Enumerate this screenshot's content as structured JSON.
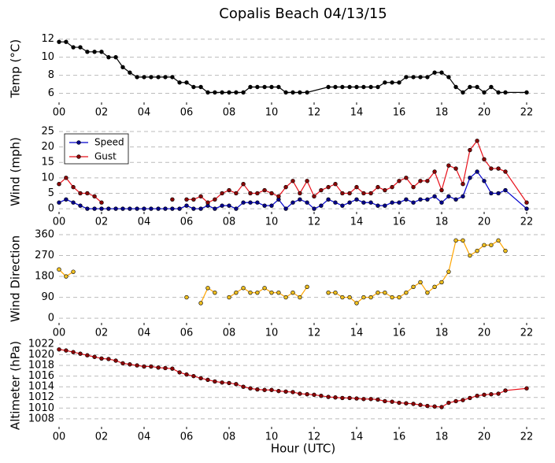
{
  "chart_data": [
    {
      "type": "line",
      "title": "Copalis Beach 04/13/15",
      "y_label": "Temp (°C)",
      "x": [
        0,
        0.33,
        0.67,
        1,
        1.33,
        1.67,
        2,
        2.33,
        2.67,
        3,
        3.33,
        3.67,
        4,
        4.33,
        4.67,
        5,
        5.33,
        5.67,
        6,
        6.33,
        6.67,
        7,
        7.33,
        7.67,
        8,
        8.33,
        8.67,
        9,
        9.33,
        9.67,
        10,
        10.33,
        10.67,
        11,
        11.33,
        11.67,
        12.67,
        13,
        13.33,
        13.67,
        14,
        14.33,
        14.67,
        15,
        15.33,
        15.67,
        16,
        16.33,
        16.67,
        17,
        17.33,
        17.67,
        18,
        18.33,
        18.67,
        19,
        19.33,
        19.67,
        20,
        20.33,
        20.67,
        21,
        22
      ],
      "series": [
        {
          "name": "Temp",
          "color": "#000000",
          "marker_color": "#000000",
          "values": [
            11.7,
            11.7,
            11.1,
            11.1,
            10.6,
            10.6,
            10.6,
            10,
            10,
            8.9,
            8.3,
            7.8,
            7.8,
            7.8,
            7.8,
            7.8,
            7.8,
            7.2,
            7.2,
            6.7,
            6.7,
            6.1,
            6.1,
            6.1,
            6.1,
            6.1,
            6.1,
            6.7,
            6.7,
            6.7,
            6.7,
            6.7,
            6.1,
            6.1,
            6.1,
            6.1,
            6.7,
            6.7,
            6.7,
            6.7,
            6.7,
            6.7,
            6.7,
            6.7,
            7.2,
            7.2,
            7.2,
            7.8,
            7.8,
            7.8,
            7.8,
            8.3,
            8.3,
            7.8,
            6.7,
            6.1,
            6.7,
            6.7,
            6.1,
            6.7,
            6.1,
            6.1,
            6.1
          ]
        }
      ],
      "xlim": [
        0,
        23
      ],
      "ylim": [
        5,
        12.5
      ],
      "yticks": [
        6,
        8,
        10,
        12
      ],
      "xticks": [
        {
          "value": 0,
          "label": "00"
        },
        {
          "value": 2,
          "label": "02"
        },
        {
          "value": 4,
          "label": "04"
        },
        {
          "value": 6,
          "label": "06"
        },
        {
          "value": 8,
          "label": "08"
        },
        {
          "value": 10,
          "label": "10"
        },
        {
          "value": 12,
          "label": "12"
        },
        {
          "value": 14,
          "label": "14"
        },
        {
          "value": 16,
          "label": "16"
        },
        {
          "value": 18,
          "label": "18"
        },
        {
          "value": 20,
          "label": "20"
        },
        {
          "value": 22,
          "label": "22"
        }
      ],
      "grid": true
    },
    {
      "type": "line",
      "y_label": "Wind (mph)",
      "legend": "upper left",
      "x": [
        0,
        0.33,
        0.67,
        1,
        1.33,
        1.67,
        2,
        2.33,
        2.67,
        3,
        3.33,
        3.67,
        4,
        4.33,
        4.67,
        5,
        5.33,
        5.67,
        6,
        6.33,
        6.67,
        7,
        7.33,
        7.67,
        8,
        8.33,
        8.67,
        9,
        9.33,
        9.67,
        10,
        10.33,
        10.67,
        11,
        11.33,
        11.67,
        12,
        12.33,
        12.67,
        13,
        13.33,
        13.67,
        14,
        14.33,
        14.67,
        15,
        15.33,
        15.67,
        16,
        16.33,
        16.67,
        17,
        17.33,
        17.67,
        18,
        18.33,
        18.67,
        19,
        19.33,
        19.67,
        20,
        20.33,
        20.67,
        21,
        22
      ],
      "series": [
        {
          "name": "Speed",
          "color": "#0000cc",
          "marker_color": "#00008b",
          "values": [
            2,
            3,
            2,
            1,
            0,
            0,
            0,
            0,
            0,
            0,
            0,
            0,
            0,
            0,
            0,
            0,
            0,
            0,
            1,
            0,
            0,
            1,
            0,
            1,
            1,
            0,
            2,
            2,
            2,
            1,
            1,
            3,
            0,
            2,
            3,
            2,
            0,
            1,
            3,
            2,
            1,
            2,
            3,
            2,
            2,
            1,
            1,
            2,
            2,
            3,
            2,
            3,
            3,
            4,
            2,
            4,
            3,
            4,
            10,
            12,
            9,
            5,
            5,
            6,
            0
          ]
        },
        {
          "name": "Gust",
          "color": "#e8101a",
          "marker_color": "#8b0000",
          "values": [
            8,
            10,
            7,
            5,
            5,
            4,
            2,
            null,
            null,
            null,
            null,
            null,
            null,
            null,
            null,
            null,
            3,
            null,
            3,
            3,
            4,
            2,
            3,
            5,
            6,
            5,
            8,
            5,
            5,
            6,
            5,
            4,
            7,
            9,
            5,
            9,
            4,
            6,
            7,
            8,
            5,
            5,
            7,
            5,
            5,
            7,
            6,
            7,
            9,
            10,
            7,
            9,
            9,
            12,
            6,
            14,
            13,
            8,
            19,
            22,
            16,
            13,
            13,
            12,
            2
          ]
        }
      ],
      "xlim": [
        0,
        23
      ],
      "ylim": [
        -1,
        25
      ],
      "yticks": [
        0,
        5,
        10,
        15,
        20,
        25
      ],
      "xticks": [
        {
          "value": 0,
          "label": "00"
        },
        {
          "value": 2,
          "label": "02"
        },
        {
          "value": 4,
          "label": "04"
        },
        {
          "value": 6,
          "label": "06"
        },
        {
          "value": 8,
          "label": "08"
        },
        {
          "value": 10,
          "label": "10"
        },
        {
          "value": 12,
          "label": "12"
        },
        {
          "value": 14,
          "label": "14"
        },
        {
          "value": 16,
          "label": "16"
        },
        {
          "value": 18,
          "label": "18"
        },
        {
          "value": 20,
          "label": "20"
        },
        {
          "value": 22,
          "label": "22"
        }
      ],
      "grid": true
    },
    {
      "type": "line",
      "y_label": "Wind Direction",
      "x": [
        0,
        0.33,
        0.67,
        1,
        1.33,
        1.67,
        2,
        2.33,
        2.67,
        3,
        3.33,
        3.67,
        4,
        4.33,
        4.67,
        5,
        5.33,
        5.67,
        6,
        6.33,
        6.67,
        7,
        7.33,
        7.67,
        8,
        8.33,
        8.67,
        9,
        9.33,
        9.67,
        10,
        10.33,
        10.67,
        11,
        11.33,
        11.67,
        12,
        12.33,
        12.67,
        13,
        13.33,
        13.67,
        14,
        14.33,
        14.67,
        15,
        15.33,
        15.67,
        16,
        16.33,
        16.67,
        17,
        17.33,
        17.67,
        18,
        18.33,
        18.67,
        19,
        19.33,
        19.67,
        20,
        20.33,
        20.67,
        21
      ],
      "series": [
        {
          "name": "Direction",
          "color": "#ffa500",
          "marker_color": "#f0c020",
          "values": [
            210,
            180,
            200,
            null,
            null,
            null,
            null,
            null,
            null,
            null,
            null,
            null,
            null,
            null,
            null,
            null,
            null,
            null,
            90,
            null,
            65,
            130,
            110,
            null,
            90,
            110,
            130,
            110,
            110,
            130,
            110,
            110,
            90,
            110,
            90,
            135,
            null,
            null,
            110,
            110,
            90,
            90,
            65,
            90,
            90,
            110,
            110,
            90,
            90,
            110,
            135,
            155,
            110,
            135,
            155,
            200,
            335,
            335,
            270,
            290,
            315,
            315,
            335,
            290
          ]
        }
      ],
      "xlim": [
        0,
        23
      ],
      "ylim": [
        -20,
        360
      ],
      "yticks": [
        0,
        90,
        180,
        270,
        360
      ],
      "xticks": [
        {
          "value": 0,
          "label": "00"
        },
        {
          "value": 2,
          "label": "02"
        },
        {
          "value": 4,
          "label": "04"
        },
        {
          "value": 6,
          "label": "06"
        },
        {
          "value": 8,
          "label": "08"
        },
        {
          "value": 10,
          "label": "10"
        },
        {
          "value": 12,
          "label": "12"
        },
        {
          "value": 14,
          "label": "14"
        },
        {
          "value": 16,
          "label": "16"
        },
        {
          "value": 18,
          "label": "18"
        },
        {
          "value": 20,
          "label": "20"
        },
        {
          "value": 22,
          "label": "22"
        }
      ],
      "grid": true
    },
    {
      "type": "line",
      "y_label": "Altimeter (hPa)",
      "x_label": "Hour (UTC)",
      "x": [
        0,
        0.33,
        0.67,
        1,
        1.33,
        1.67,
        2,
        2.33,
        2.67,
        3,
        3.33,
        3.67,
        4,
        4.33,
        4.67,
        5,
        5.33,
        5.67,
        6,
        6.33,
        6.67,
        7,
        7.33,
        7.67,
        8,
        8.33,
        8.67,
        9,
        9.33,
        9.67,
        10,
        10.33,
        10.67,
        11,
        11.33,
        11.67,
        12,
        12.33,
        12.67,
        13,
        13.33,
        13.67,
        14,
        14.33,
        14.67,
        15,
        15.33,
        15.67,
        16,
        16.33,
        16.67,
        17,
        17.33,
        17.67,
        18,
        18.33,
        18.67,
        19,
        19.33,
        19.67,
        20,
        20.33,
        20.67,
        21,
        22
      ],
      "series": [
        {
          "name": "Altimeter",
          "color": "#e8101a",
          "marker_color": "#8b0000",
          "values": [
            1021.0,
            1020.8,
            1020.5,
            1020.2,
            1019.9,
            1019.6,
            1019.3,
            1019.2,
            1018.9,
            1018.4,
            1018.2,
            1018.0,
            1017.8,
            1017.8,
            1017.6,
            1017.5,
            1017.4,
            1016.7,
            1016.3,
            1016.0,
            1015.6,
            1015.3,
            1015.0,
            1014.8,
            1014.7,
            1014.5,
            1014.0,
            1013.7,
            1013.5,
            1013.4,
            1013.4,
            1013.2,
            1013.1,
            1013.0,
            1012.7,
            1012.6,
            1012.5,
            1012.3,
            1012.1,
            1012.0,
            1011.9,
            1011.9,
            1011.8,
            1011.7,
            1011.7,
            1011.6,
            1011.3,
            1011.2,
            1011.0,
            1010.9,
            1010.8,
            1010.6,
            1010.4,
            1010.3,
            1010.2,
            1011.0,
            1011.3,
            1011.5,
            1011.9,
            1012.3,
            1012.5,
            1012.6,
            1012.7,
            1013.3,
            1013.7
          ]
        }
      ],
      "xlim": [
        0,
        23
      ],
      "ylim": [
        1006.5,
        1022
      ],
      "yticks": [
        1008,
        1010,
        1012,
        1014,
        1016,
        1018,
        1020,
        1022
      ],
      "xticks": [
        {
          "value": 0,
          "label": "00"
        },
        {
          "value": 2,
          "label": "02"
        },
        {
          "value": 4,
          "label": "04"
        },
        {
          "value": 6,
          "label": "06"
        },
        {
          "value": 8,
          "label": "08"
        },
        {
          "value": 10,
          "label": "10"
        },
        {
          "value": 12,
          "label": "12"
        },
        {
          "value": 14,
          "label": "14"
        },
        {
          "value": 16,
          "label": "16"
        },
        {
          "value": 18,
          "label": "18"
        },
        {
          "value": 20,
          "label": "20"
        },
        {
          "value": 22,
          "label": "22"
        }
      ],
      "grid": true
    }
  ]
}
